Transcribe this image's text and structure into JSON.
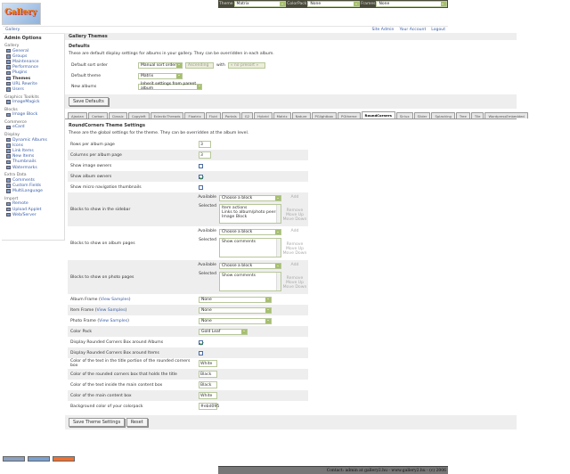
{
  "topbar": {
    "theme_label": "Theme",
    "theme_value": "Matrix",
    "colorpack_label": "ColorPack",
    "colorpack_value": "None",
    "frames_label": "Frames",
    "frames_value": "None"
  },
  "logo_text": "Gallery",
  "breadcrumb": {
    "root": "Gallery",
    "links": [
      "Site Admin",
      "Your Account",
      "Logout"
    ]
  },
  "sidebar": {
    "title": "Admin Options",
    "groups": [
      {
        "label": "Gallery",
        "items": [
          "General",
          "Groups",
          "Maintenance",
          "Performance",
          "Plugins",
          "Themes",
          "URL Rewrite",
          "Users"
        ]
      },
      {
        "label": "Graphics Toolkits",
        "items": [
          "ImageMagick"
        ]
      },
      {
        "label": "Blocks",
        "items": [
          "Image Block"
        ]
      },
      {
        "label": "Commerce",
        "items": [
          "eCard"
        ]
      },
      {
        "label": "Display",
        "items": [
          "Dynamic Albums",
          "Icons",
          "Link Items",
          "New Items",
          "Thumbnails",
          "Watermarks"
        ]
      },
      {
        "label": "Extra Data",
        "items": [
          "Comments",
          "Custom Fields",
          "MultiLanguage"
        ]
      },
      {
        "label": "Import",
        "items": [
          "Remote",
          "Upload Applet",
          "Web/Server"
        ]
      }
    ],
    "current": "Themes"
  },
  "main": {
    "header": "Gallery Themes",
    "defaults": {
      "title": "Defaults",
      "description": "These are default display settings for albums in your gallery. They can be overridden in each album.",
      "sort_label": "Default sort order",
      "sort_value": "Manual sort order",
      "sort_dir": "Ascending",
      "with_label": "with",
      "presort": "« no presort »",
      "theme_label": "Default theme",
      "theme_value": "Matrix",
      "new_albums_label": "New albums",
      "new_albums_value": "Inherit settings from parent album",
      "save_button": "Save Defaults"
    },
    "tabs": [
      "Ajaxian",
      "Carbon",
      "Classic",
      "Copyleft",
      "EclecticThreads",
      "Floatrix",
      "Fluid",
      "Portals",
      "G2",
      "Hybrid",
      "Matrix",
      "Nature",
      "PGlightbox",
      "PGtheme",
      "RoundCorners",
      "Siriux",
      "Slider",
      "Splashing",
      "Tree",
      "Tile",
      "WordpressEmbedded"
    ],
    "active_tab": "RoundCorners",
    "settings": {
      "title": "RoundCorners Theme Settings",
      "description": "These are the global settings for the theme. They can be overridden at the album level.",
      "rows_label": "Rows per album page",
      "rows_value": "3",
      "cols_label": "Columns per album page",
      "cols_value": "3",
      "show_image_owners": {
        "label": "Show image owners",
        "checked": false
      },
      "show_album_owners": {
        "label": "Show album owners",
        "checked": true
      },
      "show_micro_nav": {
        "label": "Show micro navigation thumbnails",
        "checked": false
      },
      "block_available_label": "Available",
      "block_selected_label": "Selected",
      "block_placeholder": "Choose a block",
      "add": "Add",
      "remove": "Remove",
      "move_up": "Move Up",
      "move_down": "Move Down",
      "sidebar_blocks": {
        "label": "Blocks to show in the sidebar",
        "selected": [
          "Item actions",
          "Links to album/photo peers",
          "Image Block"
        ]
      },
      "album_blocks": {
        "label": "Blocks to show on album pages",
        "selected": [
          "Show comments"
        ]
      },
      "photo_blocks": {
        "label": "Blocks to show on photo pages",
        "selected": [
          "Show comments"
        ]
      },
      "view_samples": "View Samples",
      "album_frame": {
        "label": "Album Frame",
        "value": "None"
      },
      "item_frame": {
        "label": "Item Frame",
        "value": "None"
      },
      "photo_frame": {
        "label": "Photo Frame",
        "value": "None"
      },
      "color_pack": {
        "label": "Color Pack",
        "value": "Gold Leaf"
      },
      "rc_albums": {
        "label": "Display Rounded Corners Box around Albums",
        "checked": true
      },
      "rc_items": {
        "label": "Display Rounded Corners Box around Items",
        "checked": false
      },
      "title_text_color": {
        "label": "Color of the text in the title portion of the rounded corners box",
        "value": "White"
      },
      "title_box_color": {
        "label": "Color of the rounded corners box that holds the title",
        "value": "Black"
      },
      "main_text_color": {
        "label": "Color of the text inside the main content box",
        "value": "Black"
      },
      "main_box_color": {
        "label": "Color of the main content box",
        "value": "White"
      },
      "bg_color": {
        "label": "Background color of your colorpack",
        "value": "#ebd095"
      },
      "save_button": "Save Theme Settings",
      "reset_button": "Reset"
    }
  },
  "footer": "Contact: admin at gallery2.hu - www.gallery2.hu - (c) 2006"
}
